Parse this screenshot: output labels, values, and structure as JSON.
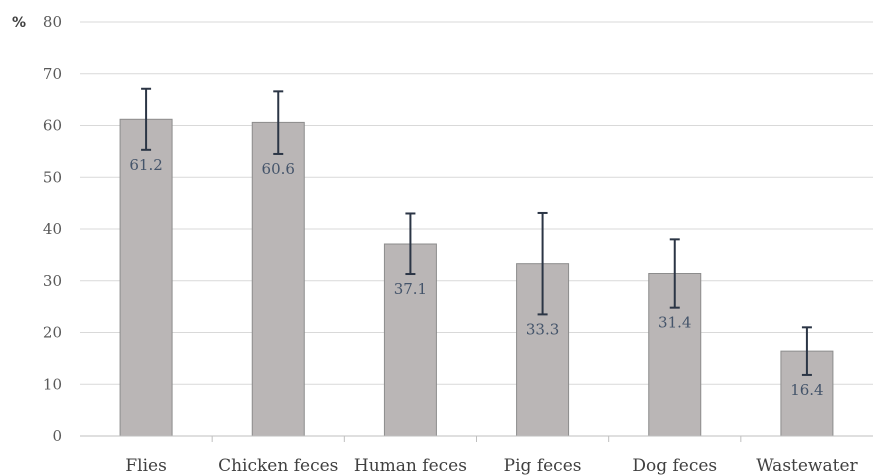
{
  "chart_data": {
    "type": "bar",
    "title": "",
    "xlabel": "",
    "ylabel": "%",
    "ylim": [
      0,
      80
    ],
    "yticks": [
      0,
      10,
      20,
      30,
      40,
      50,
      60,
      70,
      80
    ],
    "grid": true,
    "categories": [
      "Flies",
      "Chicken feces",
      "Human feces",
      "Pig feces",
      "Dog feces",
      "Wastewater"
    ],
    "values": [
      61.2,
      60.6,
      37.1,
      33.3,
      31.4,
      16.4
    ],
    "data_labels": [
      "61.2",
      "60.6",
      "37.1",
      "33.3",
      "31.4",
      "16.4"
    ],
    "error_low": [
      55.3,
      54.5,
      31.3,
      23.5,
      24.8,
      11.8
    ],
    "error_high": [
      67.1,
      66.6,
      43.0,
      43.1,
      38.0,
      21.0
    ],
    "colors": {
      "bar_fill": "#bab6b6",
      "bar_stroke": "#8c8c8c",
      "error_bar": "#2b3545",
      "data_label": "#44546a",
      "grid": "#d9d9d9"
    }
  }
}
